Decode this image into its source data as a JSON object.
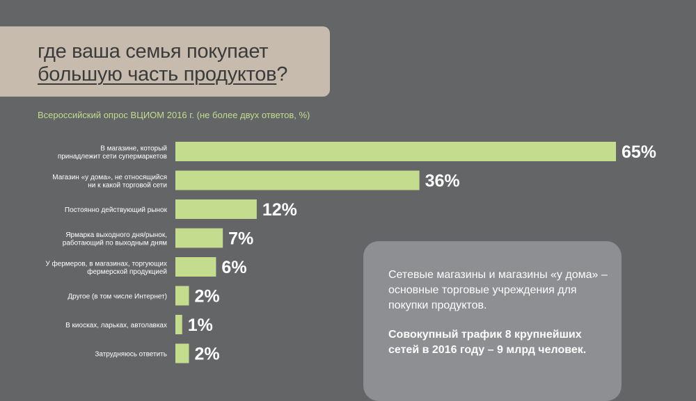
{
  "title": {
    "line1": "где ваша семья покупает",
    "line2_underlined": "большую часть продуктов",
    "line2_tail": "?"
  },
  "subtitle": "Всероссийский опрос ВЦИОМ 2016 г. (не более двух ответов, %)",
  "colors": {
    "background": "#646567",
    "bar": "#c3dc8d",
    "title_box": "#c7bbad",
    "info_box": "#8e8f92"
  },
  "chart_data": {
    "type": "bar",
    "orientation": "horizontal",
    "categories": [
      [
        "В магазине, который",
        "принадлежит сети супермаркетов"
      ],
      [
        "Магазин «у дома», не относящийся",
        "ни к какой торговой сети"
      ],
      [
        "Постоянно действующий рынок"
      ],
      [
        "Ярмарка выходного дня/рынок,",
        "работающий по выходным дням"
      ],
      [
        "У фермеров, в магазинах, торгующих",
        "фермерской продукцией"
      ],
      [
        "Другое (в том числе Интернет)"
      ],
      [
        "В киосках, ларьках, автолавках"
      ],
      [
        "Затрудняюсь ответить"
      ]
    ],
    "values": [
      65,
      36,
      12,
      7,
      6,
      2,
      1,
      2
    ],
    "value_labels": [
      "65%",
      "36%",
      "12%",
      "7%",
      "6%",
      "2%",
      "1%",
      "2%"
    ],
    "xlim": [
      0,
      65
    ]
  },
  "info": {
    "text": "Сетевые магазины и магазины «у дома» – основные торговые учреждения для покупки продуктов.",
    "bold_text": "Совокупный трафик 8 крупнейших сетей в 2016 году – 9 млрд человек."
  }
}
